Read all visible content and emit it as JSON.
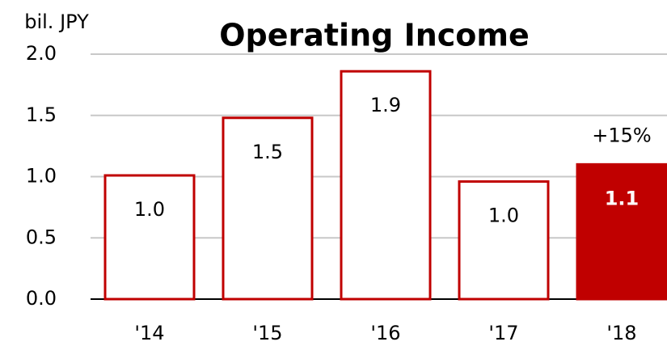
{
  "chart_data": {
    "type": "bar",
    "title": "Operating Income",
    "y_label": "bil. JPY",
    "categories": [
      "'14",
      "'15",
      "'16",
      "'17",
      "'18"
    ],
    "values": [
      1.01,
      1.48,
      1.86,
      0.96,
      1.1
    ],
    "value_labels": [
      "1.0",
      "1.5",
      "1.9",
      "1.0",
      "1.1"
    ],
    "fill_colors": [
      "#ffffff",
      "#ffffff",
      "#ffffff",
      "#ffffff",
      "#c00000"
    ],
    "edge_color": "#c00000",
    "value_label_colors": [
      "#000000",
      "#000000",
      "#000000",
      "#000000",
      "#ffffff"
    ],
    "annotation": {
      "text": "+15%",
      "category": 4
    },
    "ylim": [
      0,
      2
    ],
    "yticks": [
      {
        "value": 0,
        "label": "0.0"
      },
      {
        "value": 0.5,
        "label": "0.5"
      },
      {
        "value": 1,
        "label": "1.0"
      },
      {
        "value": 1.5,
        "label": "1.5"
      },
      {
        "value": 2,
        "label": "2.0"
      }
    ],
    "grid": true
  }
}
